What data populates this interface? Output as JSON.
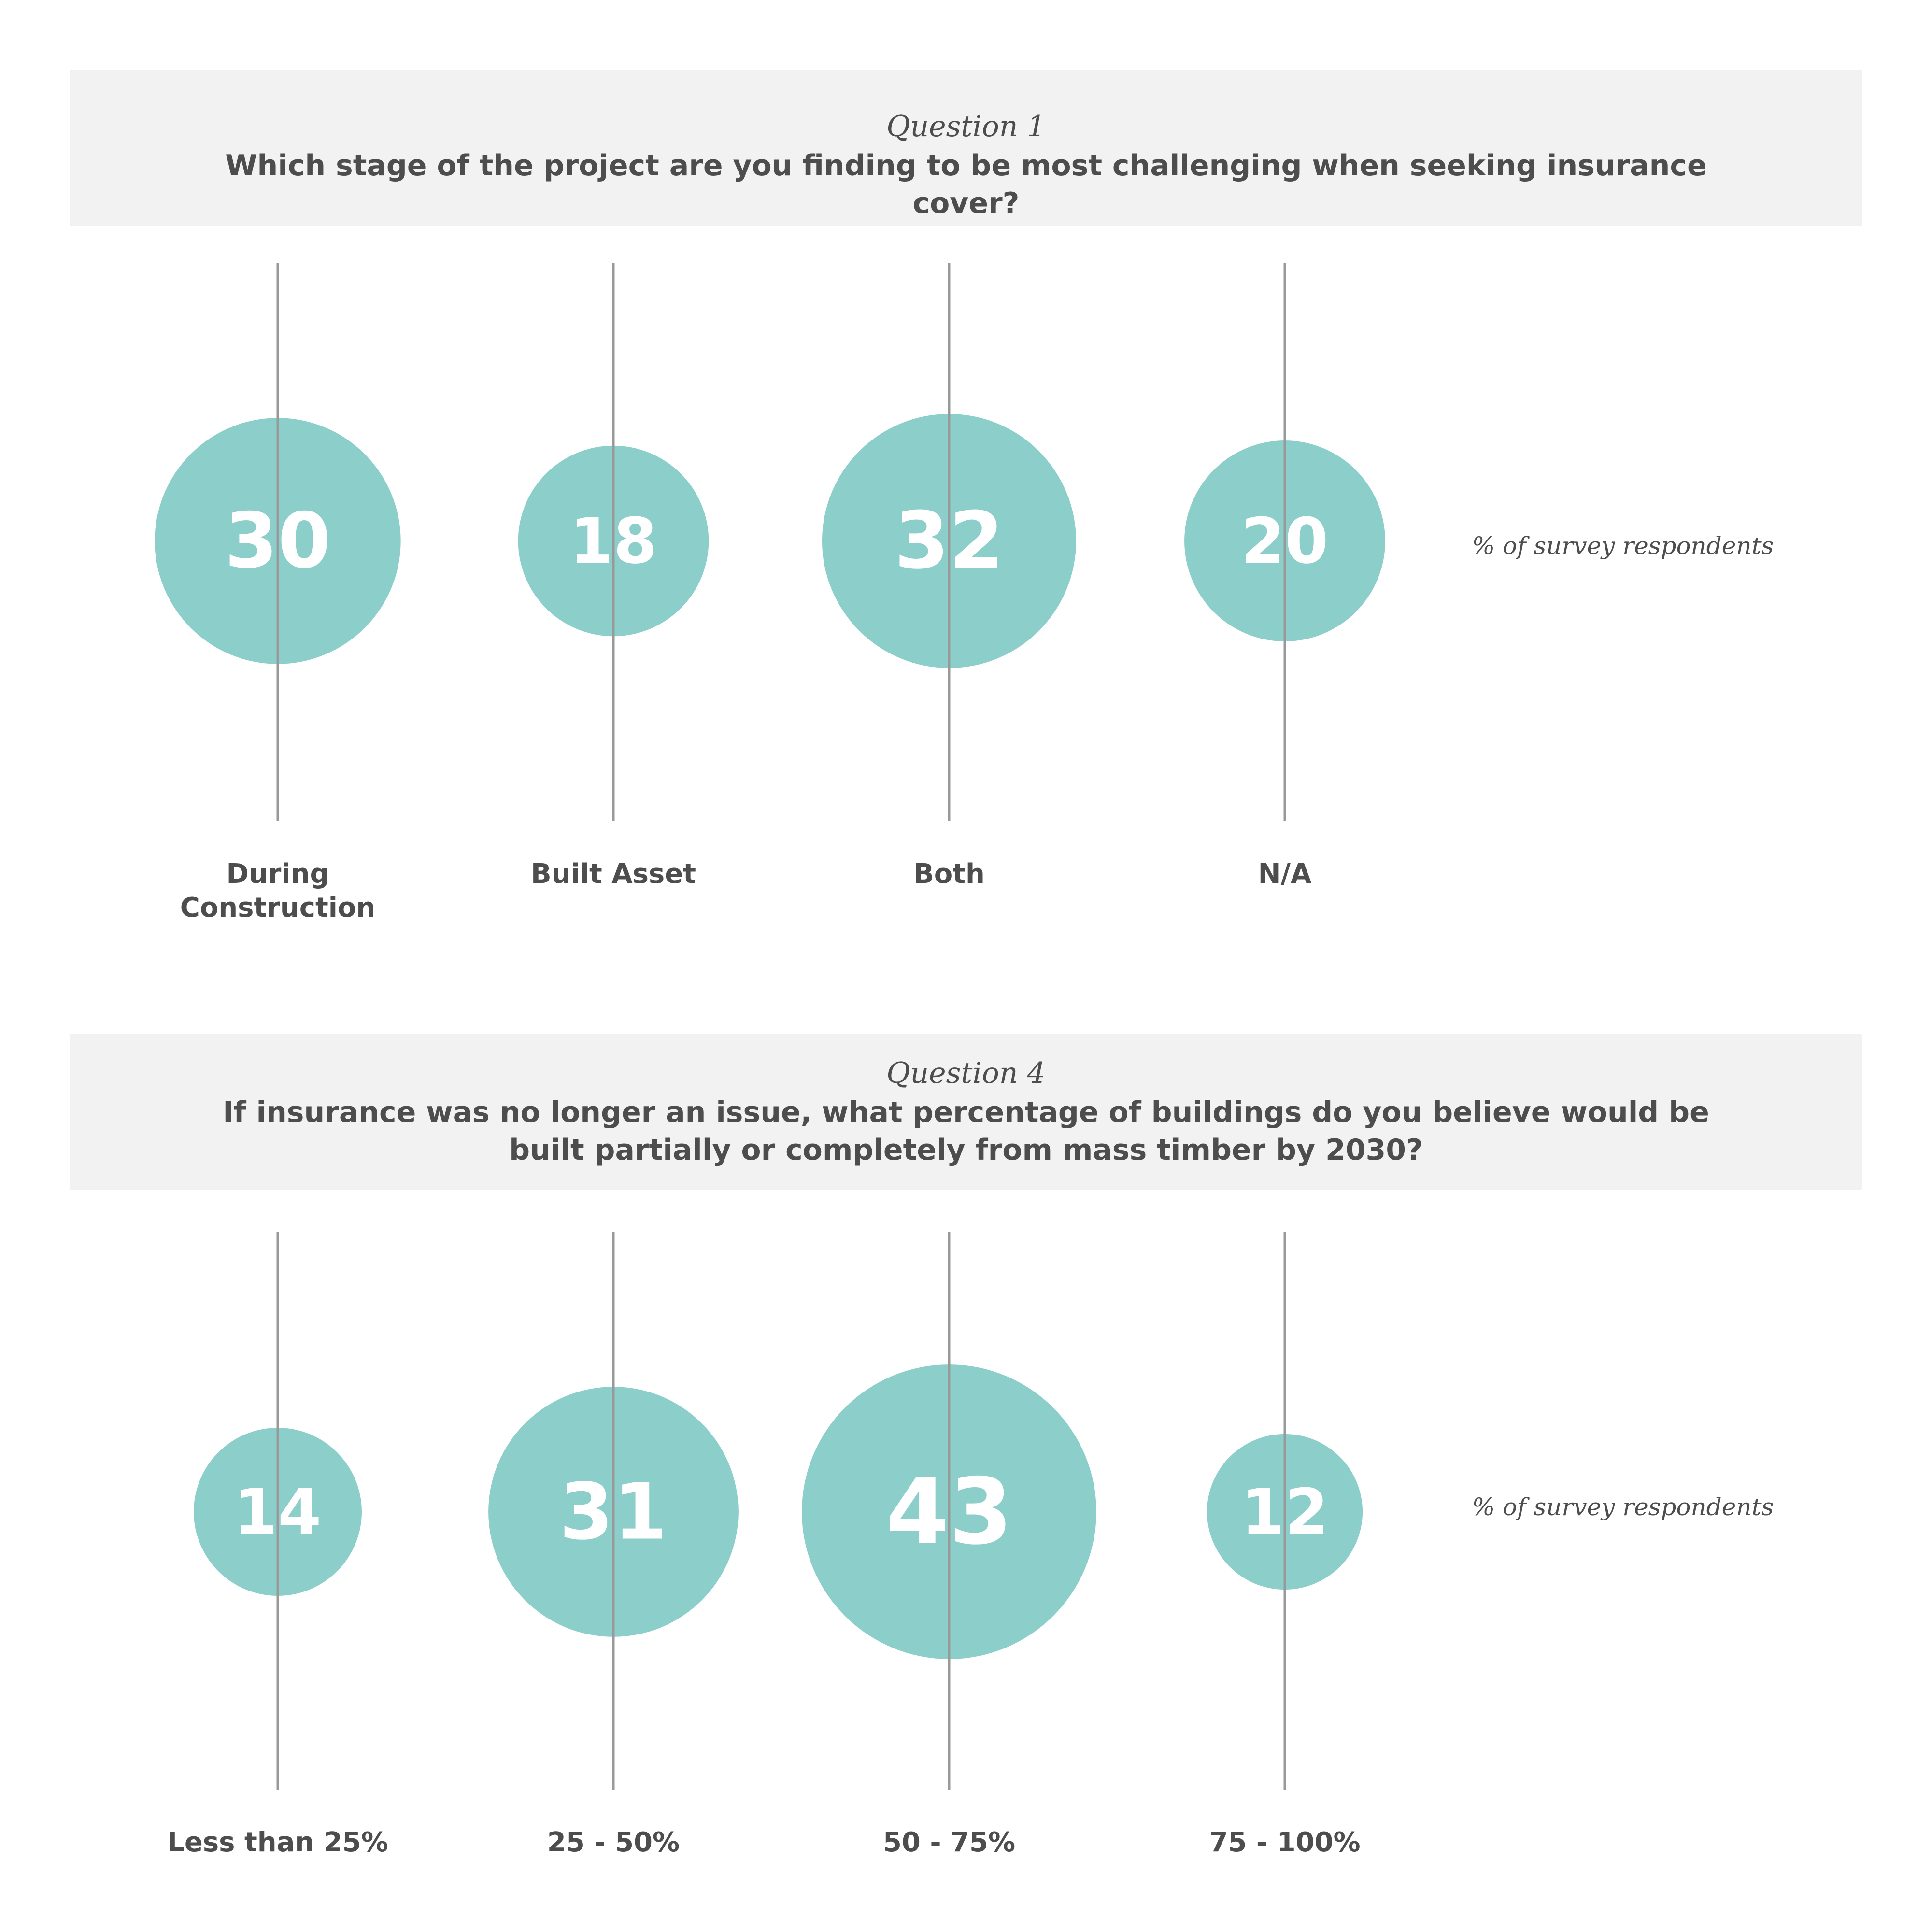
{
  "colors": {
    "bubble": "#8ccfca",
    "line": "#999999",
    "value_text": "#ffffff",
    "header_bg": "#f2f2f2",
    "text": "#4d4d4d"
  },
  "questions": [
    {
      "label": "Question 1",
      "text": "Which stage of the project are you finding to be most challenging when seeking insurance cover?",
      "unit_label": "% of survey respondents"
    },
    {
      "label": "Question 4",
      "text": "If insurance was no longer an issue, what percentage of buildings do you believe would be built partially or completely from mass timber by 2030?",
      "unit_label": "% of survey respondents"
    }
  ],
  "chart_data": [
    {
      "type": "bubble",
      "categories": [
        "During\nConstruction",
        "Built Asset",
        "Both",
        "N/A"
      ],
      "values": [
        30,
        18,
        32,
        20
      ]
    },
    {
      "type": "bubble",
      "categories": [
        "Less than 25%",
        "25 - 50%",
        "50 - 75%",
        "75 - 100%"
      ],
      "values": [
        14,
        31,
        43,
        12
      ]
    }
  ]
}
